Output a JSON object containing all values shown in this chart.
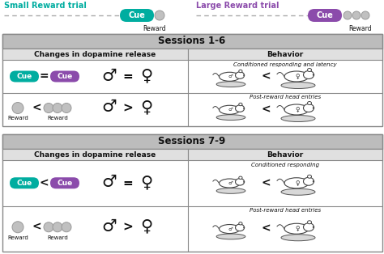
{
  "title_top_left": "Small Reward trial",
  "title_top_right": "Large Reward trial",
  "teal_color": "#00ADA0",
  "purple_color": "#8B4BAB",
  "gray_circle_color": "#C0C0C0",
  "gray_circle_outline": "#999999",
  "header_bg": "#BCBCBC",
  "subheader_bg": "#E0E0E0",
  "white": "#FFFFFF",
  "dark_text": "#111111",
  "sessions_1_6": "Sessions 1-6",
  "sessions_7_9": "Sessions 7-9",
  "col1_header": "Changes in dopamine release",
  "col2_header": "Behavior",
  "cond_respond_latency": "Conditioned responding and latency",
  "post_reward_1": "Post-reward head entries",
  "cond_respond": "Conditioned responding",
  "post_reward_2": "Post-reward head entries",
  "border_color": "#888888",
  "line_color": "#888888"
}
